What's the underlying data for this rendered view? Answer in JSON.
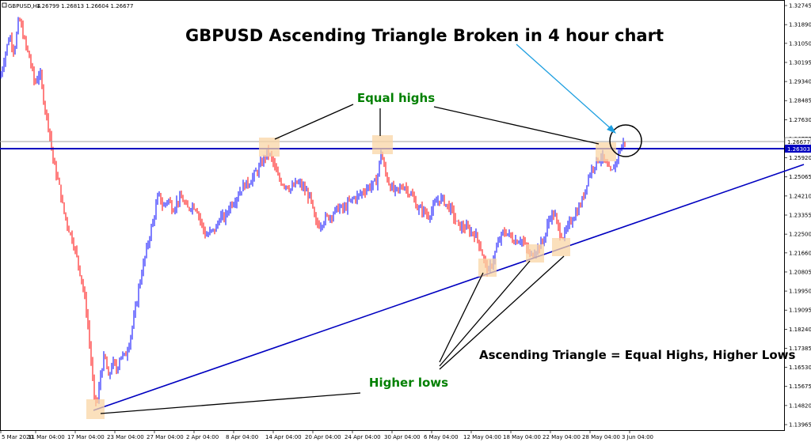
{
  "chart_data": {
    "type": "candlestick",
    "symbol_label": "GBPUSD,H4",
    "ohlc_label": "1.26799 1.26813 1.26604 1.26677",
    "title": "GBPUSD Ascending Triangle Broken in 4 hour chart",
    "y_ticks": [
      "1.32745",
      "1.31890",
      "1.31050",
      "1.30195",
      "1.29340",
      "1.28485",
      "1.27630",
      "1.26775",
      "1.25920",
      "1.25065",
      "1.24210",
      "1.23355",
      "1.22500",
      "1.21660",
      "1.20805",
      "1.19950",
      "1.19095",
      "1.18240",
      "1.17385",
      "1.16530",
      "1.15675",
      "1.14820",
      "1.13965"
    ],
    "ylim": [
      1.13965,
      1.32745
    ],
    "x_ticks": [
      "5 Mar 2020",
      "11 Mar 04:00",
      "17 Mar 04:00",
      "23 Mar 04:00",
      "27 Mar 04:00",
      "2 Apr 04:00",
      "8 Apr 04:00",
      "14 Apr 04:00",
      "20 Apr 04:00",
      "24 Apr 04:00",
      "30 Apr 04:00",
      "6 May 04:00",
      "12 May 04:00",
      "18 May 04:00",
      "22 May 04:00",
      "28 May 04:00",
      "3 Jun 04:00"
    ],
    "current_price": "1.26677",
    "resistance_price": "1.26303",
    "resistance_level": 1.263,
    "candles": {
      "bull_color": "#0000ff",
      "bear_color": "#ff0000",
      "path": [
        [
          0,
          1.295
        ],
        [
          6,
          1.305
        ],
        [
          12,
          1.314
        ],
        [
          18,
          1.307
        ],
        [
          24,
          1.322
        ],
        [
          32,
          1.31
        ],
        [
          38,
          1.303
        ],
        [
          44,
          1.292
        ],
        [
          50,
          1.298
        ],
        [
          56,
          1.283
        ],
        [
          62,
          1.272
        ],
        [
          68,
          1.256
        ],
        [
          74,
          1.248
        ],
        [
          80,
          1.236
        ],
        [
          86,
          1.228
        ],
        [
          92,
          1.222
        ],
        [
          98,
          1.213
        ],
        [
          104,
          1.203
        ],
        [
          110,
          1.188
        ],
        [
          115,
          1.168
        ],
        [
          119,
          1.151
        ],
        [
          123,
          1.15
        ],
        [
          127,
          1.162
        ],
        [
          132,
          1.171
        ],
        [
          137,
          1.16
        ],
        [
          142,
          1.168
        ],
        [
          147,
          1.164
        ],
        [
          152,
          1.171
        ],
        [
          158,
          1.17
        ],
        [
          164,
          1.178
        ],
        [
          170,
          1.189
        ],
        [
          176,
          1.203
        ],
        [
          182,
          1.213
        ],
        [
          188,
          1.223
        ],
        [
          194,
          1.232
        ],
        [
          200,
          1.243
        ],
        [
          206,
          1.237
        ],
        [
          212,
          1.241
        ],
        [
          218,
          1.236
        ],
        [
          224,
          1.24
        ],
        [
          230,
          1.241
        ],
        [
          236,
          1.236
        ],
        [
          242,
          1.238
        ],
        [
          248,
          1.237
        ],
        [
          254,
          1.23
        ],
        [
          260,
          1.224
        ],
        [
          266,
          1.226
        ],
        [
          272,
          1.227
        ],
        [
          278,
          1.233
        ],
        [
          284,
          1.232
        ],
        [
          290,
          1.238
        ],
        [
          296,
          1.24
        ],
        [
          302,
          1.244
        ],
        [
          308,
          1.247
        ],
        [
          314,
          1.248
        ],
        [
          320,
          1.251
        ],
        [
          326,
          1.254
        ],
        [
          332,
          1.258
        ],
        [
          338,
          1.262
        ],
        [
          344,
          1.258
        ],
        [
          350,
          1.251
        ],
        [
          356,
          1.248
        ],
        [
          362,
          1.247
        ],
        [
          368,
          1.245
        ],
        [
          374,
          1.248
        ],
        [
          380,
          1.247
        ],
        [
          386,
          1.244
        ],
        [
          392,
          1.241
        ],
        [
          398,
          1.23
        ],
        [
          404,
          1.229
        ],
        [
          410,
          1.232
        ],
        [
          416,
          1.233
        ],
        [
          422,
          1.235
        ],
        [
          428,
          1.237
        ],
        [
          434,
          1.236
        ],
        [
          440,
          1.239
        ],
        [
          446,
          1.241
        ],
        [
          452,
          1.242
        ],
        [
          458,
          1.244
        ],
        [
          464,
          1.246
        ],
        [
          470,
          1.247
        ],
        [
          476,
          1.249
        ],
        [
          481,
          1.262
        ],
        [
          486,
          1.253
        ],
        [
          492,
          1.247
        ],
        [
          498,
          1.244
        ],
        [
          504,
          1.245
        ],
        [
          510,
          1.247
        ],
        [
          516,
          1.244
        ],
        [
          522,
          1.241
        ],
        [
          528,
          1.236
        ],
        [
          534,
          1.236
        ],
        [
          540,
          1.233
        ],
        [
          546,
          1.236
        ],
        [
          552,
          1.24
        ],
        [
          558,
          1.241
        ],
        [
          564,
          1.238
        ],
        [
          570,
          1.236
        ],
        [
          576,
          1.23
        ],
        [
          582,
          1.228
        ],
        [
          588,
          1.228
        ],
        [
          594,
          1.226
        ],
        [
          600,
          1.225
        ],
        [
          606,
          1.22
        ],
        [
          612,
          1.212
        ],
        [
          617,
          1.208
        ],
        [
          622,
          1.213
        ],
        [
          628,
          1.22
        ],
        [
          634,
          1.225
        ],
        [
          640,
          1.226
        ],
        [
          646,
          1.223
        ],
        [
          652,
          1.222
        ],
        [
          658,
          1.223
        ],
        [
          664,
          1.219
        ],
        [
          670,
          1.215
        ],
        [
          676,
          1.218
        ],
        [
          682,
          1.22
        ],
        [
          688,
          1.224
        ],
        [
          694,
          1.233
        ],
        [
          700,
          1.234
        ],
        [
          706,
          1.226
        ],
        [
          712,
          1.224
        ],
        [
          718,
          1.229
        ],
        [
          724,
          1.233
        ],
        [
          730,
          1.236
        ],
        [
          736,
          1.241
        ],
        [
          742,
          1.25
        ],
        [
          748,
          1.255
        ],
        [
          754,
          1.258
        ],
        [
          760,
          1.26
        ],
        [
          766,
          1.255
        ],
        [
          772,
          1.252
        ],
        [
          778,
          1.258
        ],
        [
          784,
          1.264
        ],
        [
          789,
          1.267
        ]
      ]
    }
  },
  "annotations": {
    "equal_highs": "Equal highs",
    "higher_lows": "Higher lows",
    "caption": "Ascending Triangle = Equal Highs, Higher Lows"
  }
}
